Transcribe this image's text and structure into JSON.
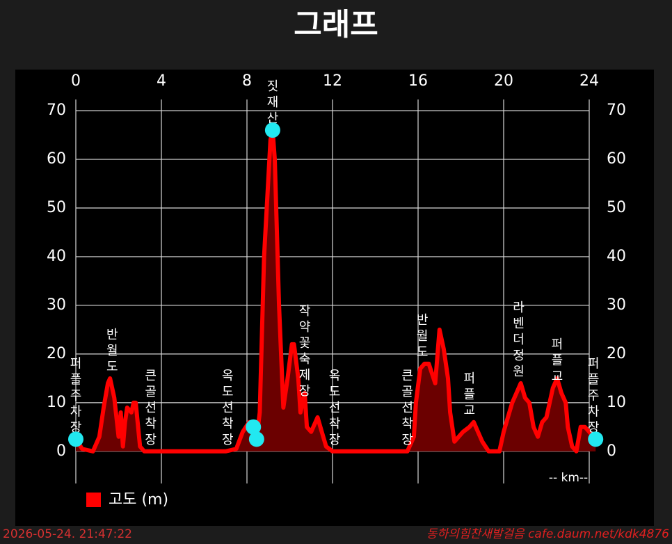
{
  "chart_data": {
    "type": "area",
    "title": "그래프",
    "x_label": "-- km--",
    "x": [
      0,
      0.3,
      0.8,
      1.1,
      1.3,
      1.5,
      1.6,
      1.8,
      2.0,
      2.1,
      2.2,
      2.3,
      2.4,
      2.6,
      2.7,
      2.8,
      3.0,
      3.2,
      7.0,
      7.5,
      7.8,
      8.1,
      8.3,
      8.45,
      8.6,
      8.8,
      9.1,
      9.2,
      9.3,
      9.5,
      9.7,
      9.9,
      10.1,
      10.2,
      10.4,
      10.5,
      10.7,
      10.8,
      11.0,
      11.3,
      11.5,
      11.7,
      12.0,
      15.5,
      15.8,
      15.9,
      16.1,
      16.3,
      16.5,
      16.8,
      17.0,
      17.2,
      17.4,
      17.5,
      17.7,
      17.9,
      18.1,
      18.4,
      18.6,
      18.8,
      19.0,
      19.3,
      19.8,
      20.0,
      20.2,
      20.4,
      20.7,
      20.8,
      21.0,
      21.2,
      21.4,
      21.6,
      21.8,
      22.0,
      22.3,
      22.5,
      22.7,
      22.9,
      23.0,
      23.2,
      23.4,
      23.6,
      23.8,
      24.0,
      24.3
    ],
    "series": [
      {
        "name": "고도 (m)",
        "color": "#ff0000",
        "fill_color": "#6b0000",
        "values": [
          2.5,
          0.5,
          0,
          3,
          9,
          14,
          15,
          11,
          3,
          8,
          1,
          6,
          9,
          8,
          10,
          10,
          1,
          0,
          0,
          0.5,
          4,
          6,
          5,
          2.5,
          8,
          40,
          64,
          66,
          60,
          30,
          9,
          15,
          22,
          22,
          15,
          8,
          12,
          5,
          4,
          7,
          4,
          1,
          0,
          0,
          3,
          10,
          17,
          18,
          18,
          14,
          25,
          21,
          15,
          8,
          2,
          3,
          4,
          5,
          6,
          4,
          2,
          0,
          0,
          4,
          7,
          10,
          13,
          14,
          11,
          10,
          5,
          3,
          6,
          7,
          13,
          15,
          12,
          10,
          5,
          1,
          0,
          5,
          5,
          4,
          2.5
        ]
      }
    ],
    "xlim": [
      0,
      24
    ],
    "xticks": [
      0,
      4,
      8,
      12,
      16,
      20,
      24
    ],
    "ylim": [
      -6.6,
      72.3
    ],
    "yticks": [
      0,
      10,
      20,
      30,
      40,
      50,
      60,
      70
    ],
    "grid": true,
    "markers": {
      "color": "#22e8f0",
      "points": [
        {
          "x": 0,
          "y": 2.5
        },
        {
          "x": 8.3,
          "y": 5
        },
        {
          "x": 8.45,
          "y": 2.5
        },
        {
          "x": 9.2,
          "y": 66
        },
        {
          "x": 24.3,
          "y": 2.5
        }
      ]
    },
    "waypoints": [
      {
        "label": "퍼플주차장",
        "x": 0,
        "y": 2.5
      },
      {
        "label": "반월도",
        "x": 1.7,
        "y": 15
      },
      {
        "label": "큰골선착장",
        "x": 3.5,
        "y": 0
      },
      {
        "label": "옥도선착장",
        "x": 7.1,
        "y": 0
      },
      {
        "label": "짓재산",
        "x": 9.2,
        "y": 66
      },
      {
        "label": "작약꽃축제장",
        "x": 10.7,
        "y": 10
      },
      {
        "label": "옥도선착장",
        "x": 12.1,
        "y": 0
      },
      {
        "label": "큰골선착장",
        "x": 15.5,
        "y": 0
      },
      {
        "label": "반월도",
        "x": 16.2,
        "y": 18
      },
      {
        "label": "퍼플교",
        "x": 18.4,
        "y": 6
      },
      {
        "label": "라벤더정원",
        "x": 20.7,
        "y": 14
      },
      {
        "label": "퍼플교",
        "x": 22.5,
        "y": 13
      },
      {
        "label": "퍼플주차장",
        "x": 24.2,
        "y": 2.5
      }
    ]
  },
  "footer": {
    "timestamp": "2026-05-24. 21:47:22",
    "credit": "동하의힘찬새발걸음 cafe.daum.net/kdk4876"
  }
}
